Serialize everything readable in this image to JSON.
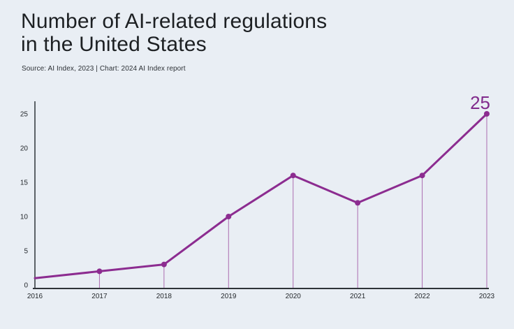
{
  "background": "#e9eef4",
  "header": {
    "title_line1": "Number of AI-related regulations",
    "title_line2": "in the United States",
    "source": "Source: AI Index, 2023 | Chart: 2024 AI Index report"
  },
  "chart_data": {
    "type": "line",
    "title": "Number of AI-related regulations in the United States",
    "x": [
      "2016",
      "2017",
      "2018",
      "2019",
      "2020",
      "2021",
      "2022",
      "2023"
    ],
    "series": [
      {
        "name": "AI-related regulations",
        "values": [
          1,
          2,
          3,
          10,
          16,
          12,
          16,
          25
        ]
      }
    ],
    "xlabel": "",
    "ylabel": "",
    "ylim": [
      0,
      27
    ],
    "yticks": [
      0,
      5,
      10,
      15,
      20,
      25
    ],
    "grid": false,
    "legend": "none",
    "markers_from_index": 1,
    "droplines_from_index": 1,
    "annotation": {
      "text": "25",
      "x_index": 7,
      "value": 25
    },
    "colors": {
      "line": "#8c2c90",
      "marker": "#8c2c90",
      "dropline": "#ab6cb0",
      "axis": "#2e3338",
      "tick_text": "#24282c",
      "annotation": "#812b8c"
    }
  }
}
